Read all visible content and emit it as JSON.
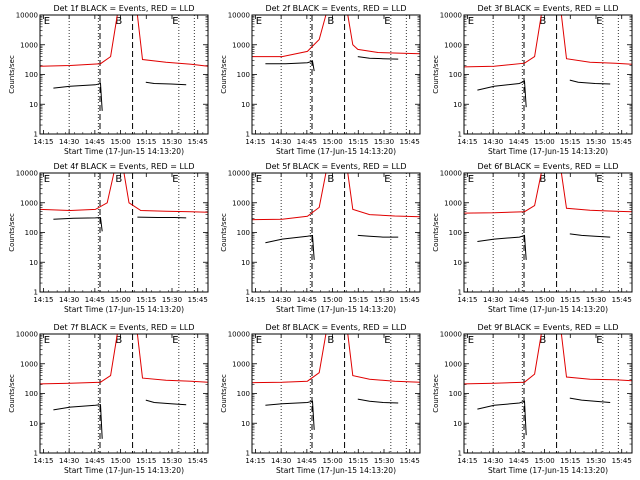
{
  "figure": {
    "colors": {
      "events": "#000000",
      "lld": "#e00000",
      "axis": "#000000"
    },
    "log_scale": true
  },
  "chart_data": [
    {
      "type": "line",
      "title": "Det 1f BLACK = Events, RED = LLD",
      "xlabel": "Start Time (17-Jun-15 14:13:20)",
      "ylabel": "Counts/sec",
      "x_ticks": [
        "14:15",
        "14:30",
        "14:45",
        "15:00",
        "15:15",
        "15:30",
        "15:45"
      ],
      "y_ticks": [
        "1",
        "10",
        "100",
        "1000",
        "10000"
      ],
      "ylim": [
        1,
        10000
      ],
      "markers": [
        {
          "label": "E",
          "time": "14:17"
        },
        {
          "label": "B",
          "time": "14:59"
        },
        {
          "label": "E",
          "time": "15:32"
        }
      ],
      "series": [
        {
          "name": "LLD",
          "values": [
            [
              0.0,
              190
            ],
            [
              0.18,
              200
            ],
            [
              0.36,
              230
            ],
            [
              0.42,
              400
            ],
            [
              0.46,
              10000
            ],
            [
              0.58,
              10000
            ],
            [
              0.61,
              320
            ],
            [
              0.75,
              260
            ],
            [
              0.9,
              220
            ],
            [
              1.0,
              190
            ]
          ]
        },
        {
          "name": "Events",
          "values": [
            [
              0.08,
              35
            ],
            [
              0.18,
              40
            ],
            [
              0.33,
              45
            ],
            [
              0.36,
              50
            ],
            [
              0.37,
              6
            ],
            null,
            [
              0.63,
              55
            ],
            [
              0.68,
              50
            ],
            [
              0.78,
              48
            ],
            [
              0.87,
              45
            ]
          ]
        }
      ]
    },
    {
      "type": "line",
      "title": "Det 2f BLACK = Events, RED = LLD",
      "xlabel": "Start Time (17-Jun-15 14:13:20)",
      "ylabel": "Counts/sec",
      "x_ticks": [
        "14:15",
        "14:30",
        "14:45",
        "15:00",
        "15:15",
        "15:30",
        "15:45"
      ],
      "y_ticks": [
        "1",
        "10",
        "100",
        "1000",
        "10000"
      ],
      "ylim": [
        1,
        10000
      ],
      "markers": [
        {
          "label": "E",
          "time": "14:17"
        },
        {
          "label": "B",
          "time": "14:59"
        },
        {
          "label": "E",
          "time": "15:32"
        }
      ],
      "series": [
        {
          "name": "LLD",
          "values": [
            [
              0.0,
              400
            ],
            [
              0.18,
              400
            ],
            [
              0.33,
              600
            ],
            [
              0.4,
              1500
            ],
            [
              0.44,
              10000
            ],
            [
              0.57,
              10000
            ],
            [
              0.6,
              1000
            ],
            [
              0.63,
              700
            ],
            [
              0.75,
              550
            ],
            [
              1.0,
              500
            ]
          ]
        },
        {
          "name": "Events",
          "values": [
            [
              0.08,
              230
            ],
            [
              0.2,
              230
            ],
            [
              0.33,
              250
            ],
            [
              0.36,
              280
            ],
            [
              0.37,
              130
            ],
            null,
            [
              0.63,
              400
            ],
            [
              0.7,
              350
            ],
            [
              0.78,
              340
            ],
            [
              0.87,
              330
            ]
          ]
        }
      ]
    },
    {
      "type": "line",
      "title": "Det 3f BLACK = Events, RED = LLD",
      "xlabel": "Start Time (17-Jun-15 14:13:20)",
      "ylabel": "Counts/sec",
      "x_ticks": [
        "14:15",
        "14:30",
        "14:45",
        "15:00",
        "15:15",
        "15:30",
        "15:45"
      ],
      "y_ticks": [
        "1",
        "10",
        "100",
        "1000",
        "10000"
      ],
      "ylim": [
        1,
        10000
      ],
      "markers": [
        {
          "label": "E",
          "time": "14:17"
        },
        {
          "label": "B",
          "time": "14:59"
        },
        {
          "label": "E",
          "time": "15:32"
        }
      ],
      "series": [
        {
          "name": "LLD",
          "values": [
            [
              0.0,
              180
            ],
            [
              0.18,
              190
            ],
            [
              0.36,
              240
            ],
            [
              0.42,
              400
            ],
            [
              0.46,
              10000
            ],
            [
              0.58,
              10000
            ],
            [
              0.61,
              340
            ],
            [
              0.75,
              260
            ],
            [
              0.9,
              240
            ],
            [
              1.0,
              220
            ]
          ]
        },
        {
          "name": "Events",
          "values": [
            [
              0.08,
              30
            ],
            [
              0.18,
              40
            ],
            [
              0.33,
              50
            ],
            [
              0.36,
              60
            ],
            [
              0.37,
              8
            ],
            null,
            [
              0.63,
              65
            ],
            [
              0.68,
              55
            ],
            [
              0.78,
              50
            ],
            [
              0.87,
              48
            ]
          ]
        }
      ]
    },
    {
      "type": "line",
      "title": "Det 4f BLACK = Events, RED = LLD",
      "xlabel": "Start Time (17-Jun-15 14:13:20)",
      "ylabel": "Counts/sec",
      "x_ticks": [
        "14:15",
        "14:30",
        "14:45",
        "15:00",
        "15:15",
        "15:30",
        "15:45"
      ],
      "y_ticks": [
        "1",
        "10",
        "100",
        "1000",
        "10000"
      ],
      "ylim": [
        1,
        10000
      ],
      "markers": [
        {
          "label": "E",
          "time": "14:17"
        },
        {
          "label": "B",
          "time": "14:59"
        },
        {
          "label": "E",
          "time": "15:32"
        }
      ],
      "series": [
        {
          "name": "LLD",
          "values": [
            [
              0.0,
              600
            ],
            [
              0.18,
              550
            ],
            [
              0.33,
              600
            ],
            [
              0.4,
              1000
            ],
            [
              0.44,
              10000
            ],
            [
              0.5,
              10000
            ],
            [
              0.53,
              1000
            ],
            [
              0.6,
              550
            ],
            [
              0.75,
              520
            ],
            [
              0.9,
              500
            ],
            [
              1.0,
              480
            ]
          ]
        },
        {
          "name": "Events",
          "values": [
            [
              0.08,
              280
            ],
            [
              0.2,
              300
            ],
            [
              0.33,
              310
            ],
            [
              0.36,
              320
            ],
            [
              0.37,
              110
            ],
            null,
            [
              0.58,
              330
            ],
            [
              0.7,
              320
            ],
            [
              0.8,
              320
            ],
            [
              0.87,
              310
            ]
          ]
        }
      ]
    },
    {
      "type": "line",
      "title": "Det 5f BLACK = Events, RED = LLD",
      "xlabel": "Start Time (17-Jun-15 14:13:20)",
      "ylabel": "Counts/sec",
      "x_ticks": [
        "14:15",
        "14:30",
        "14:45",
        "15:00",
        "15:15",
        "15:30",
        "15:45"
      ],
      "y_ticks": [
        "1",
        "10",
        "100",
        "1000",
        "10000"
      ],
      "ylim": [
        1,
        10000
      ],
      "markers": [
        {
          "label": "E",
          "time": "14:17"
        },
        {
          "label": "B",
          "time": "14:59"
        },
        {
          "label": "E",
          "time": "15:32"
        }
      ],
      "series": [
        {
          "name": "LLD",
          "values": [
            [
              0.0,
              270
            ],
            [
              0.18,
              280
            ],
            [
              0.33,
              350
            ],
            [
              0.4,
              700
            ],
            [
              0.44,
              10000
            ],
            [
              0.57,
              10000
            ],
            [
              0.6,
              600
            ],
            [
              0.7,
              400
            ],
            [
              0.85,
              360
            ],
            [
              1.0,
              340
            ]
          ]
        },
        {
          "name": "Events",
          "values": [
            [
              0.08,
              45
            ],
            [
              0.18,
              60
            ],
            [
              0.33,
              75
            ],
            [
              0.36,
              80
            ],
            [
              0.37,
              12
            ],
            null,
            [
              0.63,
              80
            ],
            [
              0.7,
              75
            ],
            [
              0.78,
              70
            ],
            [
              0.87,
              70
            ]
          ]
        }
      ]
    },
    {
      "type": "line",
      "title": "Det 6f BLACK = Events, RED = LLD",
      "xlabel": "Start Time (17-Jun-15 14:13:20)",
      "ylabel": "Counts/sec",
      "x_ticks": [
        "14:15",
        "14:30",
        "14:45",
        "15:00",
        "15:15",
        "15:30",
        "15:45"
      ],
      "y_ticks": [
        "1",
        "10",
        "100",
        "1000",
        "10000"
      ],
      "ylim": [
        1,
        10000
      ],
      "markers": [
        {
          "label": "E",
          "time": "14:17"
        },
        {
          "label": "B",
          "time": "14:59"
        },
        {
          "label": "E",
          "time": "15:32"
        }
      ],
      "series": [
        {
          "name": "LLD",
          "values": [
            [
              0.0,
              450
            ],
            [
              0.18,
              460
            ],
            [
              0.36,
              500
            ],
            [
              0.42,
              800
            ],
            [
              0.46,
              10000
            ],
            [
              0.58,
              10000
            ],
            [
              0.61,
              650
            ],
            [
              0.75,
              560
            ],
            [
              0.9,
              520
            ],
            [
              1.0,
              500
            ]
          ]
        },
        {
          "name": "Events",
          "values": [
            [
              0.08,
              50
            ],
            [
              0.18,
              60
            ],
            [
              0.33,
              70
            ],
            [
              0.36,
              80
            ],
            [
              0.37,
              12
            ],
            null,
            [
              0.63,
              90
            ],
            [
              0.7,
              80
            ],
            [
              0.78,
              75
            ],
            [
              0.87,
              70
            ]
          ]
        }
      ]
    },
    {
      "type": "line",
      "title": "Det 7f BLACK = Events, RED = LLD",
      "xlabel": "Start Time (17-Jun-15 14:13:20)",
      "ylabel": "Counts/sec",
      "x_ticks": [
        "14:15",
        "14:30",
        "14:45",
        "15:00",
        "15:15",
        "15:30",
        "15:45"
      ],
      "y_ticks": [
        "1",
        "10",
        "100",
        "1000",
        "10000"
      ],
      "ylim": [
        1,
        10000
      ],
      "markers": [
        {
          "label": "E",
          "time": "14:17"
        },
        {
          "label": "B",
          "time": "14:59"
        },
        {
          "label": "E",
          "time": "15:32"
        }
      ],
      "series": [
        {
          "name": "LLD",
          "values": [
            [
              0.0,
              210
            ],
            [
              0.18,
              220
            ],
            [
              0.36,
              240
            ],
            [
              0.42,
              400
            ],
            [
              0.46,
              10000
            ],
            [
              0.58,
              10000
            ],
            [
              0.61,
              330
            ],
            [
              0.75,
              280
            ],
            [
              0.9,
              260
            ],
            [
              1.0,
              240
            ]
          ]
        },
        {
          "name": "Events",
          "values": [
            [
              0.08,
              28
            ],
            [
              0.18,
              35
            ],
            [
              0.33,
              40
            ],
            [
              0.36,
              42
            ],
            [
              0.37,
              3
            ],
            null,
            [
              0.63,
              60
            ],
            [
              0.68,
              50
            ],
            [
              0.78,
              45
            ],
            [
              0.87,
              42
            ]
          ]
        }
      ]
    },
    {
      "type": "line",
      "title": "Det 8f BLACK = Events, RED = LLD",
      "xlabel": "Start Time (17-Jun-15 14:13:20)",
      "ylabel": "Counts/sec",
      "x_ticks": [
        "14:15",
        "14:30",
        "14:45",
        "15:00",
        "15:15",
        "15:30",
        "15:45"
      ],
      "y_ticks": [
        "1",
        "10",
        "100",
        "1000",
        "10000"
      ],
      "ylim": [
        1,
        10000
      ],
      "markers": [
        {
          "label": "E",
          "time": "14:17"
        },
        {
          "label": "B",
          "time": "14:59"
        },
        {
          "label": "E",
          "time": "15:32"
        }
      ],
      "series": [
        {
          "name": "LLD",
          "values": [
            [
              0.0,
              230
            ],
            [
              0.18,
              240
            ],
            [
              0.33,
              260
            ],
            [
              0.4,
              500
            ],
            [
              0.44,
              10000
            ],
            [
              0.57,
              10000
            ],
            [
              0.6,
              400
            ],
            [
              0.7,
              300
            ],
            [
              0.85,
              260
            ],
            [
              1.0,
              240
            ]
          ]
        },
        {
          "name": "Events",
          "values": [
            [
              0.08,
              40
            ],
            [
              0.18,
              45
            ],
            [
              0.33,
              50
            ],
            [
              0.36,
              55
            ],
            [
              0.37,
              6
            ],
            null,
            [
              0.63,
              65
            ],
            [
              0.7,
              55
            ],
            [
              0.78,
              50
            ],
            [
              0.87,
              48
            ]
          ]
        }
      ]
    },
    {
      "type": "line",
      "title": "Det 9f BLACK = Events, RED = LLD",
      "xlabel": "Start Time (17-Jun-15 14:13:20)",
      "ylabel": "Counts/sec",
      "x_ticks": [
        "14:15",
        "14:30",
        "14:45",
        "15:00",
        "15:15",
        "15:30",
        "15:45"
      ],
      "y_ticks": [
        "1",
        "10",
        "100",
        "1000",
        "10000"
      ],
      "ylim": [
        1,
        10000
      ],
      "markers": [
        {
          "label": "E",
          "time": "14:17"
        },
        {
          "label": "B",
          "time": "14:59"
        },
        {
          "label": "E",
          "time": "15:32"
        }
      ],
      "series": [
        {
          "name": "LLD",
          "values": [
            [
              0.0,
              210
            ],
            [
              0.18,
              220
            ],
            [
              0.36,
              240
            ],
            [
              0.42,
              450
            ],
            [
              0.46,
              10000
            ],
            [
              0.58,
              10000
            ],
            [
              0.61,
              360
            ],
            [
              0.75,
              300
            ],
            [
              0.9,
              290
            ],
            [
              1.0,
              270
            ]
          ]
        },
        {
          "name": "Events",
          "values": [
            [
              0.08,
              30
            ],
            [
              0.18,
              40
            ],
            [
              0.33,
              48
            ],
            [
              0.36,
              55
            ],
            [
              0.37,
              4
            ],
            null,
            [
              0.63,
              70
            ],
            [
              0.7,
              60
            ],
            [
              0.78,
              55
            ],
            [
              0.87,
              50
            ]
          ]
        }
      ]
    }
  ]
}
